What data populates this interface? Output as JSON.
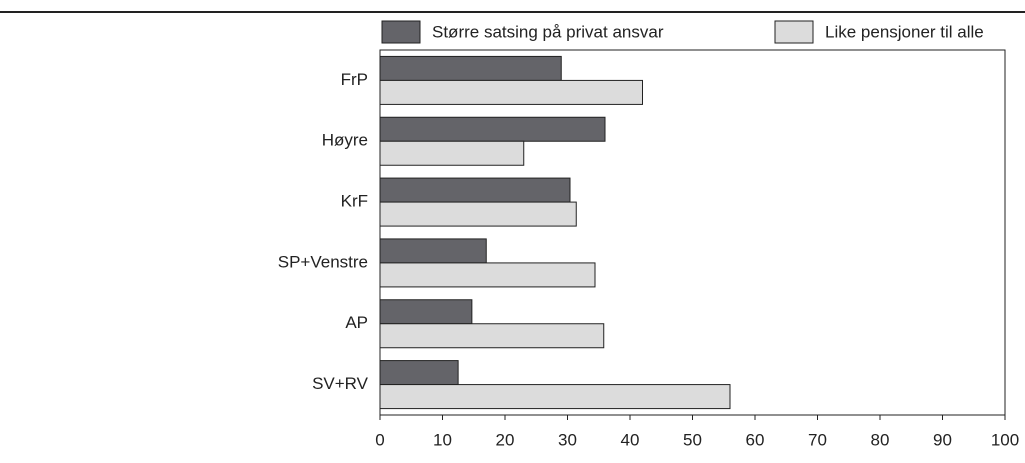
{
  "chart_data": {
    "type": "hbar",
    "categories": [
      "FrP",
      "Høyre",
      "KrF",
      "SP+Venstre",
      "AP",
      "SV+RV"
    ],
    "series": [
      {
        "name": "Større satsing på privat ansvar",
        "color": "#646469",
        "values": [
          29,
          36,
          30.4,
          17,
          14.7,
          12.5
        ]
      },
      {
        "name": "Like pensjoner til alle",
        "color": "#dcdcdc",
        "values": [
          42,
          23,
          31.4,
          34.4,
          35.8,
          56
        ]
      }
    ],
    "xlim": [
      0,
      100
    ],
    "xticks": [
      0,
      10,
      20,
      30,
      40,
      50,
      60,
      70,
      80,
      90,
      100
    ],
    "legend": "top"
  }
}
